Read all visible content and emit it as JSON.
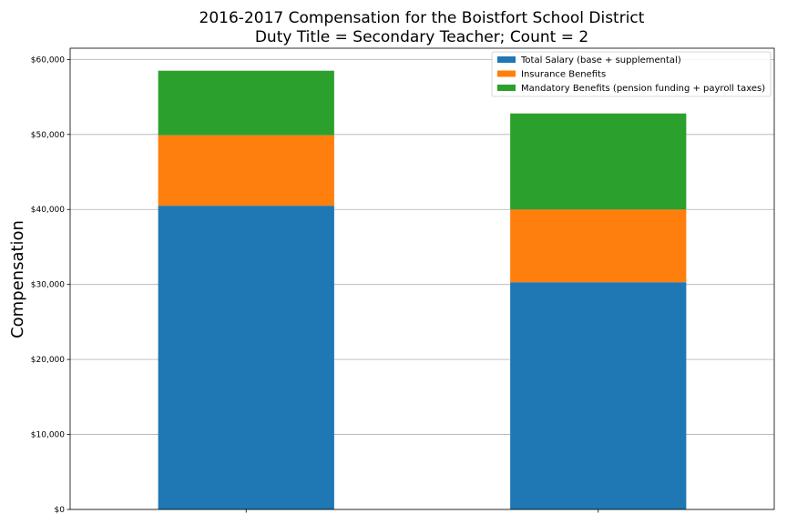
{
  "chart_data": {
    "type": "bar",
    "stacked": true,
    "title": "2016-2017 Compensation for the Boistfort School District",
    "subtitle": "Duty Title = Secondary Teacher; Count = 2",
    "xlabel": "",
    "ylabel": "Compensation",
    "categories": [
      "",
      ""
    ],
    "ylim": [
      0,
      61500
    ],
    "yticks": [
      0,
      10000,
      20000,
      30000,
      40000,
      50000,
      60000
    ],
    "ytick_labels": [
      "$0",
      "$10,000",
      "$20,000",
      "$30,000",
      "$40,000",
      "$50,000",
      "$60,000"
    ],
    "grid": "horizontal",
    "legend_position": "top-right",
    "series": [
      {
        "name": "Total Salary (base + supplemental)",
        "color": "#1f77b4",
        "values": [
          40500,
          30300
        ]
      },
      {
        "name": "Insurance Benefits",
        "color": "#ff7f0e",
        "values": [
          9400,
          9700
        ]
      },
      {
        "name": "Mandatory Benefits (pension funding + payroll taxes)",
        "color": "#2ca02c",
        "values": [
          8600,
          12800
        ]
      }
    ]
  }
}
